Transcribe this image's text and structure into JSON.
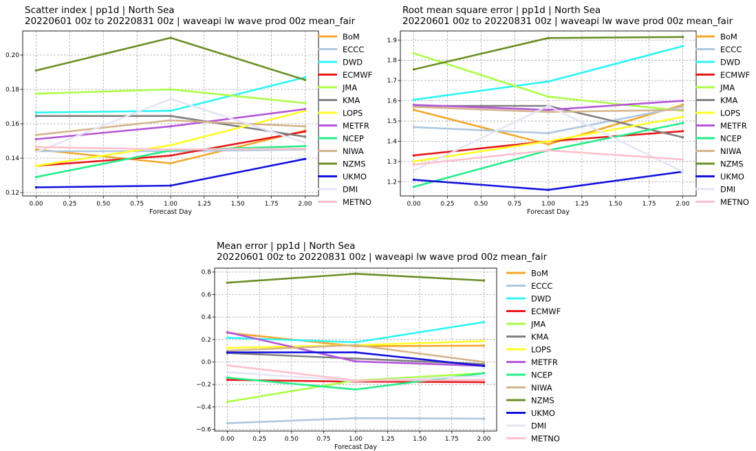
{
  "chart_data": [
    {
      "type": "line",
      "title": "Scatter index  |  pp1d | North Sea",
      "subtitle": "20220601 00z to 20220831 00z  |  waveapi lw wave prod 00z mean_fair",
      "xlabel": "Forecast Day",
      "ylabel": "",
      "x": [
        0,
        1,
        2
      ],
      "xlim": [
        -0.1,
        2.1
      ],
      "ylim": [
        0.118,
        0.214
      ],
      "xticks": [
        "0.00",
        "0.25",
        "0.50",
        "0.75",
        "1.00",
        "1.25",
        "1.50",
        "1.75",
        "2.00"
      ],
      "yticks": [
        "0.12",
        "0.14",
        "0.16",
        "0.18",
        "0.20"
      ],
      "grid": true,
      "legend": "right, outside",
      "series": [
        {
          "name": "BoM",
          "color": "#f4a62a",
          "values": [
            0.145,
            0.137,
            0.156
          ]
        },
        {
          "name": "ECCC",
          "color": "#aec7e0",
          "values": [
            0.144,
            0.144,
            0.145
          ]
        },
        {
          "name": "DWD",
          "color": "#2af5f5",
          "values": [
            0.1665,
            0.1675,
            0.187
          ]
        },
        {
          "name": "ECMWF",
          "color": "#e8171b",
          "values": [
            0.1355,
            0.1415,
            0.1555
          ]
        },
        {
          "name": "JMA",
          "color": "#aaff44",
          "values": [
            0.1775,
            0.18,
            0.172
          ]
        },
        {
          "name": "KMA",
          "color": "#808080",
          "values": [
            0.1645,
            0.1645,
            0.1525
          ]
        },
        {
          "name": "LOPS",
          "color": "#ffff22",
          "values": [
            0.1355,
            0.1475,
            0.1675
          ]
        },
        {
          "name": "METFR",
          "color": "#b455d8",
          "values": [
            0.151,
            0.1585,
            0.1685
          ]
        },
        {
          "name": "NCEP",
          "color": "#22ee88",
          "values": [
            0.129,
            0.1445,
            0.147
          ]
        },
        {
          "name": "NIWA",
          "color": "#d4b48c",
          "values": [
            0.1535,
            0.162,
            0.1585
          ]
        },
        {
          "name": "NZMS",
          "color": "#6b8e23",
          "values": [
            0.191,
            0.21,
            0.1855
          ]
        },
        {
          "name": "UKMO",
          "color": "#1111dd",
          "values": [
            0.123,
            0.124,
            0.1395
          ]
        },
        {
          "name": "DMI",
          "color": "#e4e4f7",
          "values": [
            0.1435,
            0.1745,
            0.149
          ]
        },
        {
          "name": "METNO",
          "color": "#ffc0cb",
          "values": [
            0.1465,
            0.145,
            0.1455
          ]
        }
      ]
    },
    {
      "type": "line",
      "title": "Root mean square error  |  pp1d | North Sea",
      "subtitle": "20220601 00z to 20220831 00z  |  waveapi lw wave prod 00z mean_fair",
      "xlabel": "Forecast Day",
      "ylabel": "",
      "x": [
        0,
        1,
        2
      ],
      "xlim": [
        -0.1,
        2.1
      ],
      "ylim": [
        1.13,
        1.945
      ],
      "xticks": [
        "0.00",
        "0.25",
        "0.50",
        "0.75",
        "1.00",
        "1.25",
        "1.50",
        "1.75",
        "2.00"
      ],
      "yticks": [
        "1.2",
        "1.3",
        "1.4",
        "1.5",
        "1.6",
        "1.7",
        "1.8",
        "1.9"
      ],
      "grid": true,
      "legend": "right, outside",
      "series": [
        {
          "name": "BoM",
          "color": "#f4a62a",
          "values": [
            1.555,
            1.385,
            1.58
          ]
        },
        {
          "name": "ECCC",
          "color": "#aec7e0",
          "values": [
            1.47,
            1.44,
            1.57
          ]
        },
        {
          "name": "DWD",
          "color": "#2af5f5",
          "values": [
            1.605,
            1.695,
            1.87
          ]
        },
        {
          "name": "ECMWF",
          "color": "#e8171b",
          "values": [
            1.33,
            1.4,
            1.45
          ]
        },
        {
          "name": "JMA",
          "color": "#aaff44",
          "values": [
            1.835,
            1.62,
            1.55
          ]
        },
        {
          "name": "KMA",
          "color": "#808080",
          "values": [
            1.575,
            1.575,
            1.42
          ]
        },
        {
          "name": "LOPS",
          "color": "#ffff22",
          "values": [
            1.3,
            1.4,
            1.52
          ]
        },
        {
          "name": "METFR",
          "color": "#b455d8",
          "values": [
            1.58,
            1.555,
            1.6
          ]
        },
        {
          "name": "NCEP",
          "color": "#22ee88",
          "values": [
            1.175,
            1.355,
            1.49
          ]
        },
        {
          "name": "NIWA",
          "color": "#d4b48c",
          "values": [
            1.57,
            1.545,
            1.555
          ]
        },
        {
          "name": "NZMS",
          "color": "#6b8e23",
          "values": [
            1.755,
            1.91,
            1.915
          ]
        },
        {
          "name": "UKMO",
          "color": "#1111dd",
          "values": [
            1.21,
            1.16,
            1.25
          ]
        },
        {
          "name": "DMI",
          "color": "#e4e4f7",
          "values": [
            1.255,
            1.575,
            1.25
          ]
        },
        {
          "name": "METNO",
          "color": "#ffc0cb",
          "values": [
            1.285,
            1.355,
            1.31
          ]
        }
      ]
    },
    {
      "type": "line",
      "title": "Mean error  |  pp1d | North Sea",
      "subtitle": "20220601 00z to 20220831 00z  |  waveapi lw wave prod 00z mean_fair",
      "xlabel": "Forecast Day",
      "ylabel": "",
      "x": [
        0,
        1,
        2
      ],
      "xlim": [
        -0.1,
        2.1
      ],
      "ylim": [
        -0.615,
        0.835
      ],
      "xticks": [
        "0.00",
        "0.25",
        "0.50",
        "0.75",
        "1.00",
        "1.25",
        "1.50",
        "1.75",
        "2.00"
      ],
      "yticks": [
        "−0.6",
        "−0.4",
        "−0.2",
        "0.0",
        "0.2",
        "0.4",
        "0.6",
        "0.8"
      ],
      "grid": true,
      "legend": "right, outside",
      "series": [
        {
          "name": "BoM",
          "color": "#f4a62a",
          "values": [
            0.26,
            0.14,
            0.145
          ]
        },
        {
          "name": "ECCC",
          "color": "#aec7e0",
          "values": [
            -0.545,
            -0.5,
            -0.505
          ]
        },
        {
          "name": "DWD",
          "color": "#2af5f5",
          "values": [
            0.215,
            0.175,
            0.355
          ]
        },
        {
          "name": "ECMWF",
          "color": "#e8171b",
          "values": [
            -0.16,
            -0.175,
            -0.18
          ]
        },
        {
          "name": "JMA",
          "color": "#aaff44",
          "values": [
            -0.355,
            -0.165,
            -0.1
          ]
        },
        {
          "name": "KMA",
          "color": "#808080",
          "values": [
            0.08,
            0.03,
            -0.02
          ]
        },
        {
          "name": "LOPS",
          "color": "#ffff22",
          "values": [
            0.125,
            0.15,
            0.185
          ]
        },
        {
          "name": "METFR",
          "color": "#b455d8",
          "values": [
            0.265,
            0.005,
            -0.035
          ]
        },
        {
          "name": "NCEP",
          "color": "#22ee88",
          "values": [
            -0.14,
            -0.245,
            -0.1
          ]
        },
        {
          "name": "NIWA",
          "color": "#d4b48c",
          "values": [
            0.1,
            0.15,
            0.0
          ]
        },
        {
          "name": "NZMS",
          "color": "#6b8e23",
          "values": [
            0.705,
            0.785,
            0.725
          ]
        },
        {
          "name": "UKMO",
          "color": "#1111dd",
          "values": [
            0.085,
            0.085,
            -0.035
          ]
        },
        {
          "name": "DMI",
          "color": "#e4e4f7",
          "values": [
            -0.09,
            -0.17,
            -0.125
          ]
        },
        {
          "name": "METNO",
          "color": "#ffc0cb",
          "values": [
            -0.03,
            -0.165,
            -0.16
          ]
        }
      ]
    }
  ]
}
